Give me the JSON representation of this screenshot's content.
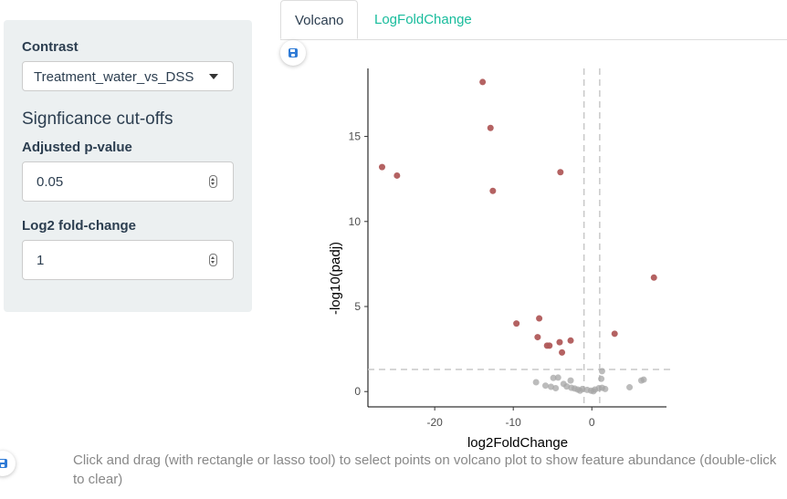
{
  "sidebar": {
    "contrast_label": "Contrast",
    "contrast_value": "Treatment_water_vs_DSS",
    "cutoffs_heading": "Signficance cut-offs",
    "padj_label": "Adjusted p-value",
    "padj_value": "0.05",
    "lfc_label": "Log2 fold-change",
    "lfc_value": "1"
  },
  "tabs": [
    {
      "label": "Volcano",
      "active": true
    },
    {
      "label": "LogFoldChange",
      "active": false
    }
  ],
  "note": "Click and drag (with rectangle or lasso tool) to select points on volcano plot to show feature abundance (double-click to clear)",
  "colors": {
    "significant": "#b05a5a",
    "nonsignificant": "#a6a6a6",
    "threshold_line": "#c8c8c8"
  },
  "chart_data": {
    "type": "scatter",
    "xlabel": "log2FoldChange",
    "ylabel": "-log10(padj)",
    "xlim": [
      -28.5,
      9.5
    ],
    "ylim": [
      -0.9,
      19
    ],
    "xticks": [
      -20,
      -10,
      0
    ],
    "yticks": [
      0,
      5,
      10,
      15
    ],
    "thresholds": {
      "x": [
        -1,
        1
      ],
      "y": 1.3
    },
    "series": [
      {
        "group": "significant",
        "points": [
          [
            -13.9,
            18.2
          ],
          [
            -12.9,
            15.5
          ],
          [
            -26.7,
            13.2
          ],
          [
            -24.8,
            12.7
          ],
          [
            -4.0,
            12.9
          ],
          [
            -12.6,
            11.8
          ],
          [
            7.9,
            6.7
          ],
          [
            -6.7,
            4.3
          ],
          [
            -9.6,
            4.0
          ],
          [
            2.9,
            3.4
          ],
          [
            -6.9,
            3.2
          ],
          [
            -5.4,
            2.7
          ],
          [
            -5.7,
            2.7
          ],
          [
            -4.1,
            2.9
          ],
          [
            -2.7,
            3.0
          ],
          [
            -3.8,
            2.3
          ]
        ]
      },
      {
        "group": "nonsignificant",
        "points": [
          [
            -7.1,
            0.55
          ],
          [
            -4.9,
            0.8
          ],
          [
            -4.3,
            0.82
          ],
          [
            -2.7,
            0.65
          ],
          [
            -5.9,
            0.35
          ],
          [
            -5.2,
            0.28
          ],
          [
            -4.6,
            0.2
          ],
          [
            -2.2,
            0.18
          ],
          [
            -1.8,
            0.12
          ],
          [
            -1.2,
            0.15
          ],
          [
            -0.6,
            0.1
          ],
          [
            -0.1,
            0.05
          ],
          [
            0.4,
            0.12
          ],
          [
            0.9,
            0.2
          ],
          [
            1.3,
            0.22
          ],
          [
            1.2,
            0.75
          ],
          [
            1.3,
            1.2
          ],
          [
            -3.2,
            0.3
          ],
          [
            6.3,
            0.65
          ],
          [
            6.6,
            0.7
          ],
          [
            4.8,
            0.25
          ],
          [
            -1.5,
            0.05
          ],
          [
            0.2,
            0.02
          ],
          [
            -2.6,
            0.22
          ],
          [
            -3.6,
            0.45
          ],
          [
            1.7,
            0.15
          ]
        ]
      }
    ]
  }
}
